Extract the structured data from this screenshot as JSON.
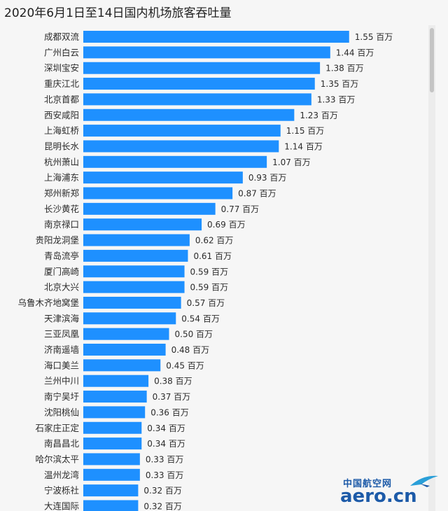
{
  "chart_data": {
    "type": "bar",
    "orientation": "horizontal",
    "title": "2020年6月1日至14日国内机场旅客吞吐量",
    "unit": "百万",
    "bar_color": "#1e90ff",
    "categories": [
      "成都双流",
      "广州白云",
      "深圳宝安",
      "重庆江北",
      "北京首都",
      "西安咸阳",
      "上海虹桥",
      "昆明长水",
      "杭州萧山",
      "上海浦东",
      "郑州新郑",
      "长沙黄花",
      "南京禄口",
      "贵阳龙洞堡",
      "青岛流亭",
      "厦门高崎",
      "北京大兴",
      "乌鲁木齐地窝堡",
      "天津滨海",
      "三亚凤凰",
      "济南遥墙",
      "海口美兰",
      "兰州中川",
      "南宁吴圩",
      "沈阳桃仙",
      "石家庄正定",
      "南昌昌北",
      "哈尔滨太平",
      "温州龙湾",
      "宁波栎社",
      "大连国际"
    ],
    "values": [
      1.55,
      1.44,
      1.38,
      1.35,
      1.33,
      1.23,
      1.15,
      1.14,
      1.07,
      0.93,
      0.87,
      0.77,
      0.69,
      0.62,
      0.61,
      0.59,
      0.59,
      0.57,
      0.54,
      0.5,
      0.48,
      0.45,
      0.38,
      0.37,
      0.36,
      0.34,
      0.34,
      0.33,
      0.33,
      0.32,
      0.32
    ],
    "value_labels": [
      "1.55",
      "1.44",
      "1.38",
      "1.35",
      "1.33",
      "1.23",
      "1.15",
      "1.14",
      "1.07",
      "0.93",
      "0.87",
      "0.77",
      "0.69",
      "0.62",
      "0.61",
      "0.59",
      "0.59",
      "0.57",
      "0.54",
      "0.50",
      "0.48",
      "0.45",
      "0.38",
      "0.37",
      "0.36",
      "0.34",
      "0.34",
      "0.33",
      "0.33",
      "0.32",
      "0.32"
    ]
  },
  "watermark": {
    "cn": "中国航空网",
    "en": "aero.cn"
  }
}
